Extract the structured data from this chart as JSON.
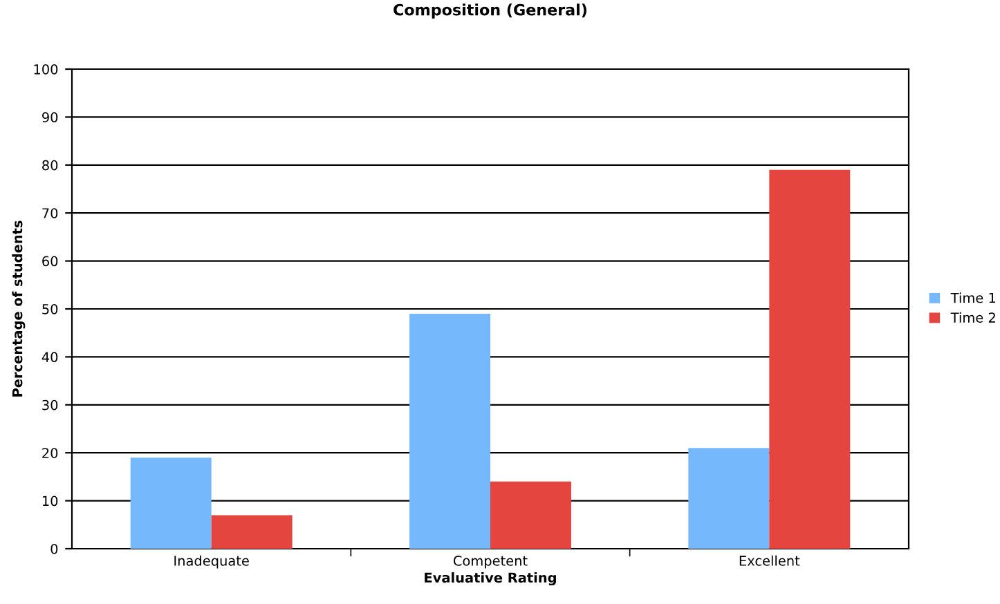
{
  "chart_data": {
    "type": "bar",
    "title": "Composition (General)",
    "xlabel": "Evaluative Rating",
    "ylabel": "Percentage of students",
    "categories": [
      "Inadequate",
      "Competent",
      "Excellent"
    ],
    "series": [
      {
        "name": "Time 1",
        "color": "#75b8fc",
        "values": [
          19,
          49,
          21
        ]
      },
      {
        "name": "Time 2",
        "color": "#e5453f",
        "values": [
          7,
          14,
          79
        ]
      }
    ],
    "ylim": [
      0,
      100
    ],
    "yticks": [
      0,
      10,
      20,
      30,
      40,
      50,
      60,
      70,
      80,
      90,
      100
    ],
    "grid": "y",
    "legend": "right"
  }
}
